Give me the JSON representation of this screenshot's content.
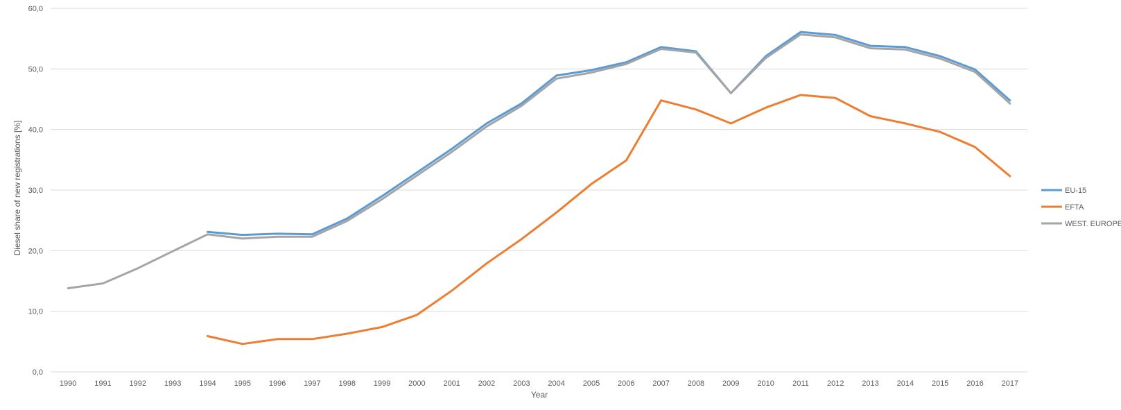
{
  "chart_data": {
    "type": "line",
    "title": "",
    "xlabel": "Year",
    "ylabel": "Diesel share of new registrations [%]",
    "ylim": [
      0,
      60
    ],
    "y_ticks": [
      "0,0",
      "10,0",
      "20,0",
      "30,0",
      "40,0",
      "50,0",
      "60,0"
    ],
    "categories": [
      "1990",
      "1991",
      "1992",
      "1993",
      "1994",
      "1995",
      "1996",
      "1997",
      "1998",
      "1999",
      "2000",
      "2001",
      "2002",
      "2003",
      "2004",
      "2005",
      "2006",
      "2007",
      "2008",
      "2009",
      "2010",
      "2011",
      "2012",
      "2013",
      "2014",
      "2015",
      "2016",
      "2017"
    ],
    "grid": true,
    "legend_position": "right",
    "series": [
      {
        "name": "EU-15",
        "color": "#5b9bd5",
        "values": [
          null,
          null,
          null,
          null,
          23.1,
          22.6,
          22.8,
          22.7,
          25.3,
          29.0,
          32.9,
          36.8,
          41.0,
          44.3,
          48.9,
          49.8,
          51.1,
          53.6,
          52.9,
          46.0,
          52.1,
          56.1,
          55.6,
          53.8,
          53.6,
          52.1,
          49.9,
          44.8
        ]
      },
      {
        "name": "EFTA",
        "color": "#ed7d31",
        "values": [
          null,
          null,
          null,
          null,
          5.9,
          4.6,
          5.4,
          5.4,
          6.3,
          7.4,
          9.4,
          13.4,
          17.9,
          21.9,
          26.3,
          31.0,
          34.9,
          44.8,
          43.3,
          41.0,
          43.6,
          45.7,
          45.2,
          42.2,
          41.0,
          39.6,
          37.1,
          32.3
        ]
      },
      {
        "name": "WEST. EUROPE",
        "color": "#a5a5a5",
        "values": [
          13.8,
          14.6,
          17.1,
          19.9,
          22.7,
          22.0,
          22.3,
          22.3,
          24.9,
          28.5,
          32.4,
          36.3,
          40.5,
          43.9,
          48.4,
          49.4,
          50.8,
          53.3,
          52.7,
          46.0,
          51.8,
          55.7,
          55.2,
          53.4,
          53.2,
          51.7,
          49.5,
          44.3
        ]
      }
    ]
  }
}
